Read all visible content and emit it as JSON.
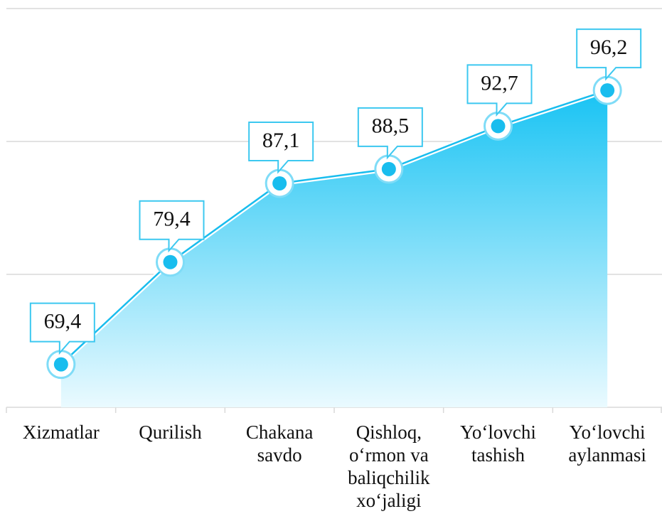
{
  "chart_data": {
    "type": "area",
    "categories": [
      "Xizmatlar",
      "Qurilish",
      "Chakana savdo",
      "Qishloq, o‘rmon va baliqchilik xo‘jaligi",
      "Yo‘lovchi tashish",
      "Yo‘lovchi aylanmasi"
    ],
    "values": [
      69.4,
      79.4,
      87.1,
      88.5,
      92.7,
      96.2
    ],
    "value_labels": [
      "69,4",
      "79,4",
      "87,1",
      "88,5",
      "92,7",
      "96,2"
    ],
    "color": "#19bdee",
    "ylim": [
      65.2,
      104.2
    ],
    "yticks": [
      65.2,
      78.2,
      91.2,
      104.2
    ],
    "grid": true
  }
}
